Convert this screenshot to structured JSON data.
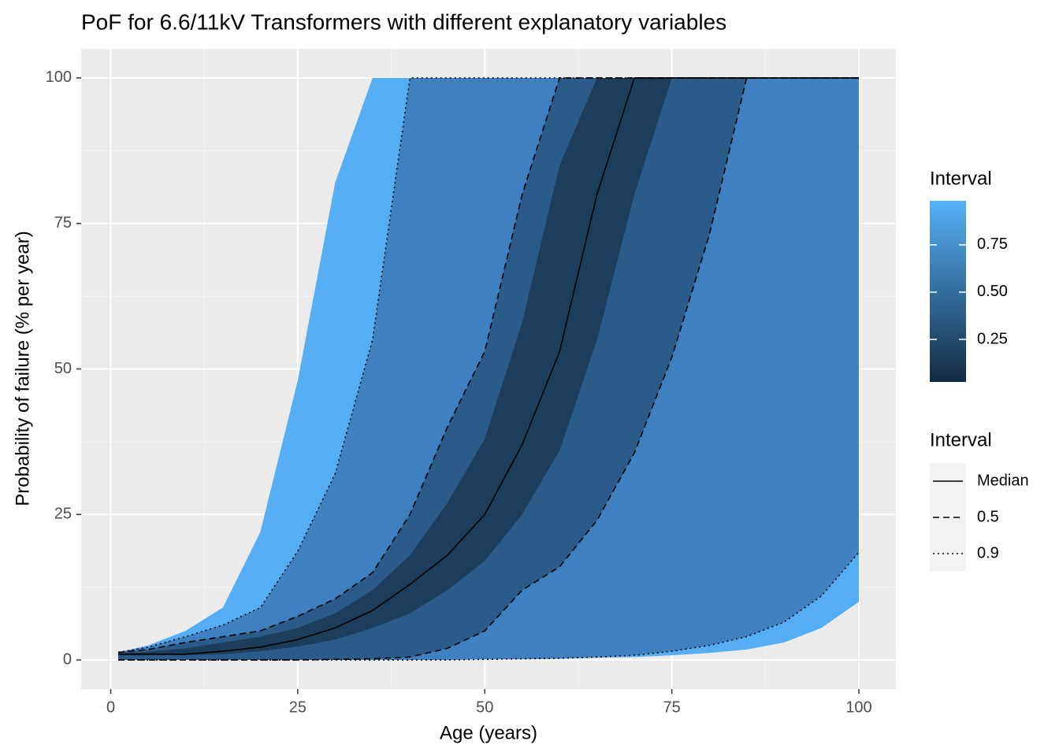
{
  "chart_data": {
    "type": "fan",
    "title": "PoF for 6.6/11kV Transformers with different explanatory variables",
    "x_label": "Age (years)",
    "y_label": "Probability of failure (% per year)",
    "xlim": [
      -3.95,
      104.95
    ],
    "ylim": [
      -5,
      105
    ],
    "xticks": [
      0,
      25,
      50,
      75,
      100
    ],
    "yticks": [
      0,
      25,
      50,
      75,
      100
    ],
    "xminor": [
      12.5,
      37.5,
      62.5,
      87.5
    ],
    "yminor": [
      12.5,
      37.5,
      62.5,
      87.5
    ],
    "grid": true,
    "x": [
      1,
      5,
      10,
      15,
      20,
      25,
      30,
      35,
      40,
      45,
      50,
      55,
      60,
      65,
      70,
      75,
      80,
      85,
      90,
      95,
      100
    ],
    "bands": [
      {
        "color": "#55aef4",
        "upper": [
          1.3,
          2.5,
          5,
          9,
          22,
          48,
          82,
          100,
          100,
          100,
          100,
          100,
          100,
          100,
          100,
          100,
          100,
          100,
          100,
          100,
          100
        ],
        "lower": [
          0,
          0,
          0,
          0,
          0,
          0,
          0,
          0,
          0,
          0,
          0.1,
          0.1,
          0.2,
          0.4,
          0.5,
          0.8,
          1.2,
          1.8,
          3,
          5.5,
          10
        ]
      },
      {
        "name": "0.9",
        "linetype": "dotted",
        "color": "#3f80c0",
        "upper": [
          1.3,
          2.2,
          4,
          6,
          9,
          18.7,
          32,
          55,
          100,
          100,
          100,
          100,
          100,
          100,
          100,
          100,
          100,
          100,
          100,
          100,
          100
        ],
        "lower": [
          0,
          0,
          0,
          0,
          0,
          0,
          0,
          0,
          0,
          0,
          0.1,
          0.2,
          0.3,
          0.5,
          0.8,
          1.5,
          2.5,
          4,
          6.5,
          11,
          18.5
        ]
      },
      {
        "name": "0.5",
        "linetype": "dashed",
        "color": "#2b5b88",
        "upper": [
          1.3,
          1.8,
          3,
          4,
          5,
          7.5,
          10.5,
          15,
          25,
          40,
          53,
          80,
          100,
          100,
          100,
          100,
          100,
          100,
          100,
          100,
          100
        ],
        "lower": [
          0,
          0,
          0,
          0,
          0,
          0,
          0.1,
          0.2,
          0.5,
          2,
          5,
          12,
          16,
          24,
          35.6,
          52,
          73,
          100,
          100,
          100,
          100
        ]
      },
      {
        "color": "#1c3d5b",
        "upper": [
          1.1,
          1.4,
          2,
          3,
          4,
          5.5,
          8,
          12,
          18,
          27,
          38,
          58,
          85,
          100,
          100,
          100,
          100,
          100,
          100,
          100,
          100
        ],
        "lower": [
          0.8,
          0.8,
          0.8,
          1,
          1.5,
          2.3,
          3.5,
          5.5,
          8,
          12,
          17,
          25,
          36,
          55,
          80,
          100,
          100,
          100,
          100,
          100,
          100
        ]
      }
    ],
    "median": {
      "name": "Median",
      "linetype": "solid",
      "values": [
        1,
        1,
        1,
        1.5,
        2.2,
        3.5,
        5.5,
        8.5,
        13,
        18,
        25,
        37,
        53,
        80,
        100,
        100,
        100,
        100,
        100,
        100,
        100
      ]
    },
    "colorbar": {
      "title": "Interval",
      "low": "#132b43",
      "high": "#56b1f7",
      "limits": [
        0.025,
        0.983
      ],
      "ticks": [
        0.25,
        {
          "value": 0.5,
          "label": "0.50"
        },
        0.75
      ]
    },
    "line_legend_title": "Interval"
  }
}
